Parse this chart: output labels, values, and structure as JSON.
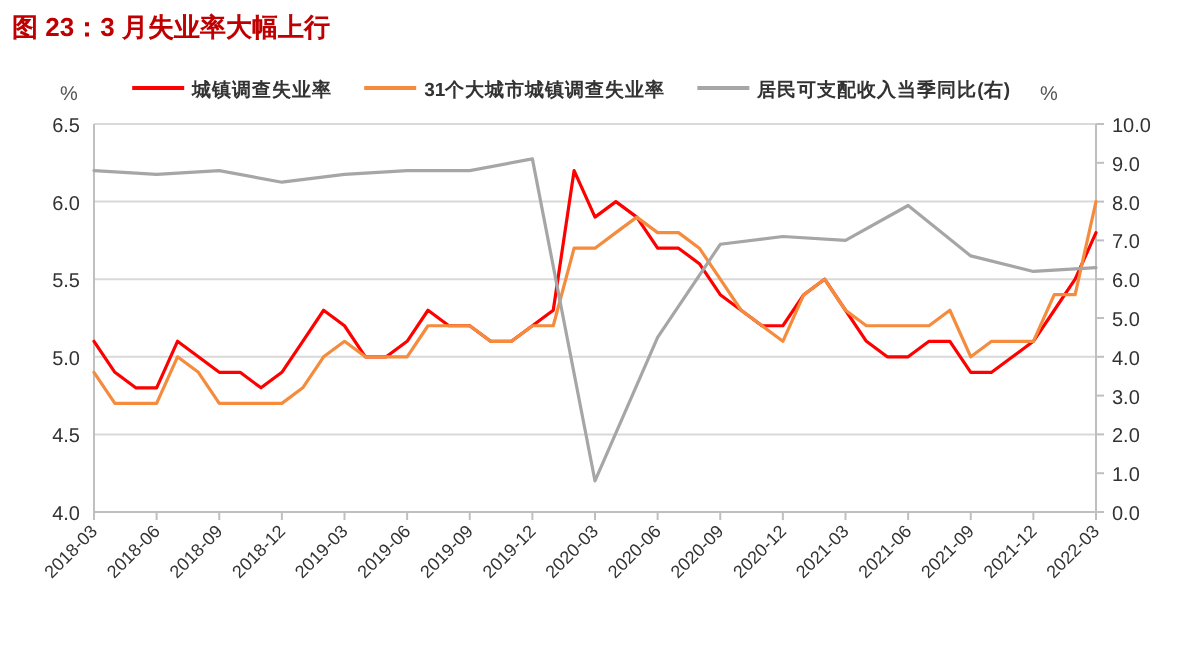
{
  "chart_data": {
    "type": "line",
    "title": "图 23：3 月失业率大幅上行",
    "ylabel": "%",
    "y2label": "%",
    "categories": [
      "2018-03",
      null,
      null,
      "2018-06",
      null,
      null,
      "2018-09",
      null,
      null,
      "2018-12",
      null,
      null,
      "2019-03",
      null,
      null,
      "2019-06",
      null,
      null,
      "2019-09",
      null,
      null,
      "2019-12",
      null,
      null,
      "2020-03",
      null,
      null,
      "2020-06",
      null,
      null,
      "2020-09",
      null,
      null,
      "2020-12",
      null,
      null,
      "2021-03",
      null,
      null,
      "2021-06",
      null,
      null,
      "2021-09",
      null,
      null,
      "2021-12",
      null,
      null,
      "2022-03"
    ],
    "series": [
      {
        "name": "城镇调查失业率",
        "color": "#ff0000",
        "values": [
          5.1,
          4.9,
          4.8,
          4.8,
          5.1,
          5.0,
          4.9,
          4.9,
          4.8,
          4.9,
          5.1,
          5.3,
          5.2,
          5.0,
          5.0,
          5.1,
          5.3,
          5.2,
          5.2,
          5.1,
          5.1,
          5.2,
          5.3,
          6.2,
          5.9,
          6.0,
          5.9,
          5.7,
          5.7,
          5.6,
          5.4,
          5.3,
          5.2,
          5.2,
          5.4,
          5.5,
          5.3,
          5.1,
          5.0,
          5.0,
          5.1,
          5.1,
          4.9,
          4.9,
          5.0,
          5.1,
          5.3,
          5.5,
          5.8
        ]
      },
      {
        "name": "31个大城市城镇调查失业率",
        "color": "#f58b3c",
        "values": [
          4.9,
          4.7,
          4.7,
          4.7,
          5.0,
          4.9,
          4.7,
          4.7,
          4.7,
          4.7,
          4.8,
          5.0,
          5.1,
          5.0,
          5.0,
          5.0,
          5.2,
          5.2,
          5.2,
          5.1,
          5.1,
          5.2,
          5.2,
          5.7,
          5.7,
          5.8,
          5.9,
          5.8,
          5.8,
          5.7,
          5.5,
          5.3,
          5.2,
          5.1,
          5.4,
          5.5,
          5.3,
          5.2,
          5.2,
          5.2,
          5.2,
          5.3,
          5.0,
          5.1,
          5.1,
          5.1,
          5.4,
          5.4,
          6.0
        ]
      },
      {
        "name": "居民可支配收入当季同比(右)",
        "color": "#a6a6a6",
        "axis": "y2",
        "values": [
          8.8,
          null,
          null,
          8.7,
          null,
          null,
          8.8,
          null,
          null,
          8.5,
          null,
          null,
          8.7,
          null,
          null,
          8.8,
          null,
          null,
          8.8,
          null,
          null,
          9.1,
          null,
          null,
          0.8,
          null,
          null,
          4.5,
          null,
          null,
          6.9,
          null,
          null,
          7.1,
          null,
          null,
          7.0,
          null,
          null,
          7.9,
          null,
          null,
          6.6,
          null,
          null,
          6.2,
          null,
          null,
          6.3
        ]
      }
    ],
    "ylim": [
      4.0,
      6.5
    ],
    "yticks": [
      {
        "value": 4.0,
        "label": "4.0"
      },
      {
        "value": 4.5,
        "label": "4.5"
      },
      {
        "value": 5.0,
        "label": "5.0"
      },
      {
        "value": 5.5,
        "label": "5.5"
      },
      {
        "value": 6.0,
        "label": "6.0"
      },
      {
        "value": 6.5,
        "label": "6.5"
      }
    ],
    "y2lim": [
      0.0,
      10.0
    ],
    "y2ticks": [
      {
        "value": 0,
        "label": "0.0"
      },
      {
        "value": 1,
        "label": "1.0"
      },
      {
        "value": 2,
        "label": "2.0"
      },
      {
        "value": 3,
        "label": "3.0"
      },
      {
        "value": 4,
        "label": "4.0"
      },
      {
        "value": 5,
        "label": "5.0"
      },
      {
        "value": 6,
        "label": "6.0"
      },
      {
        "value": 7,
        "label": "7.0"
      },
      {
        "value": 8,
        "label": "8.0"
      },
      {
        "value": 9,
        "label": "9.0"
      },
      {
        "value": 10,
        "label": "10.0"
      }
    ],
    "grid": "y",
    "legend": "top",
    "marker": "none",
    "line_style": "solid"
  }
}
